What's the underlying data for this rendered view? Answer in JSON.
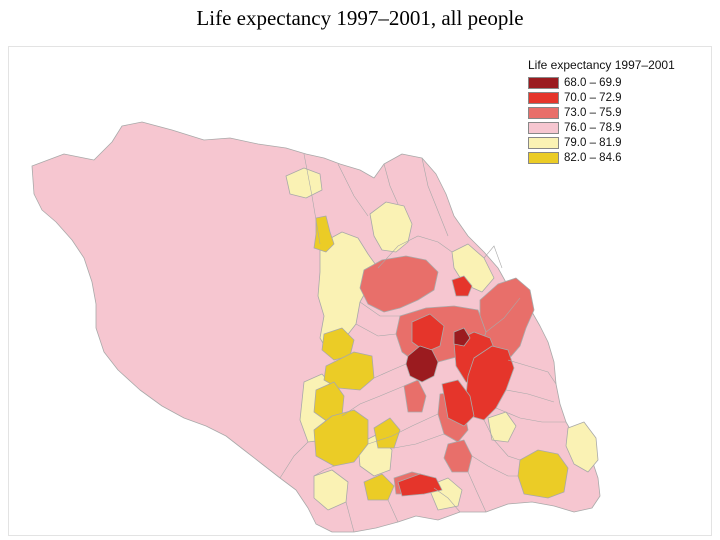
{
  "title": "Life expectancy 1997–2001, all people",
  "legend": {
    "title": "Life expectancy 1997–2001",
    "items": [
      {
        "label": "68.0 – 69.9",
        "color": "#9b1b1f"
      },
      {
        "label": "70.0 – 72.9",
        "color": "#e5352b"
      },
      {
        "label": "73.0 – 75.9",
        "color": "#e86f6a"
      },
      {
        "label": "76.0 – 78.9",
        "color": "#f6c6d0"
      },
      {
        "label": "79.0 – 81.9",
        "color": "#faf2b4"
      },
      {
        "label": "82.0 – 84.6",
        "color": "#ebcc26"
      }
    ]
  },
  "colors": {
    "boundary": "#a9a9a9",
    "frame_border": "#e3e3e3"
  }
}
